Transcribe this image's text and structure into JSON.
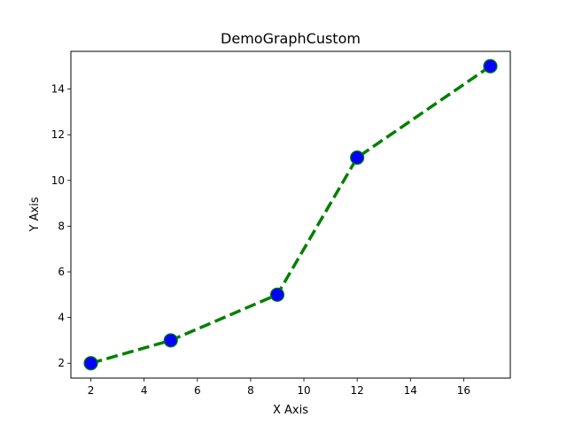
{
  "chart_data": {
    "type": "line",
    "title": "DemoGraphCustom",
    "xlabel": "X Axis",
    "ylabel": "Y Axis",
    "x": [
      2,
      5,
      9,
      12,
      17
    ],
    "series": [
      {
        "values": [
          2,
          3,
          5,
          11,
          15
        ],
        "line_color": "#008000",
        "line_style": "dashed",
        "marker_face_color": "#0000ff",
        "marker_edge_color": "#008000",
        "marker": "circle"
      }
    ],
    "xlim": [
      1.25,
      17.75
    ],
    "ylim": [
      1.35,
      15.65
    ],
    "xticks": [
      2,
      4,
      6,
      8,
      10,
      12,
      14,
      16
    ],
    "yticks": [
      2,
      4,
      6,
      8,
      10,
      12,
      14
    ],
    "grid": false,
    "legend": false
  }
}
